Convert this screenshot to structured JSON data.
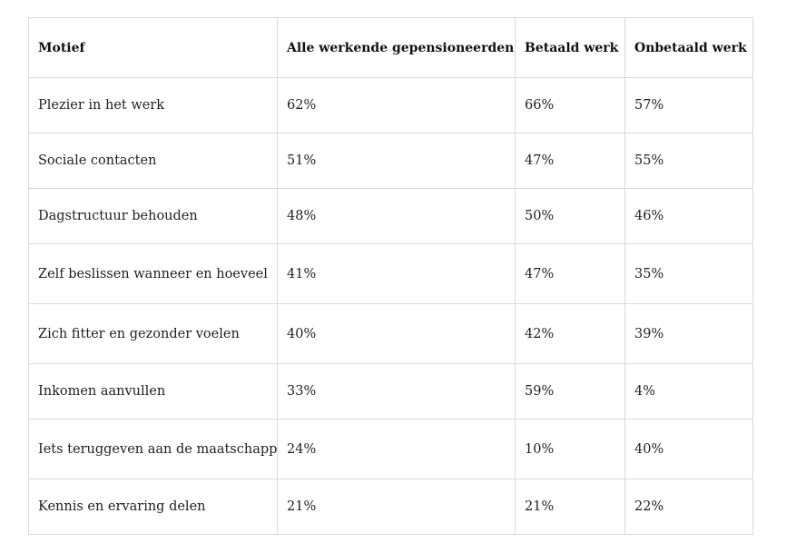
{
  "table": {
    "headers": [
      "Motief",
      "Alle werkende gepensioneerden",
      "Betaald werk",
      "Onbetaald werk"
    ],
    "rows": [
      [
        "Plezier in het werk",
        "62%",
        "66%",
        "57%"
      ],
      [
        "Sociale contacten",
        "51%",
        "47%",
        "55%"
      ],
      [
        "Dagstructuur behouden",
        "48%",
        "50%",
        "46%"
      ],
      [
        "Zelf beslissen wanneer en hoeveel",
        "41%",
        "47%",
        "35%"
      ],
      [
        "Zich fitter en gezonder voelen",
        "40%",
        "42%",
        "39%"
      ],
      [
        "Inkomen aanvullen",
        "33%",
        "59%",
        "4%"
      ],
      [
        "Iets teruggeven aan de maatschappij",
        "24%",
        "10%",
        "40%"
      ],
      [
        "Kennis en ervaring delen",
        "21%",
        "21%",
        "22%"
      ]
    ]
  },
  "colors": {
    "border": "#d9d9d9",
    "text": "#1f1f1f",
    "background": "#ffffff"
  }
}
